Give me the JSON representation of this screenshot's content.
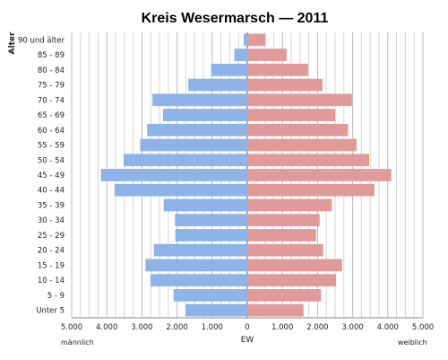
{
  "chart_data": {
    "type": "bar",
    "orientation": "horizontal",
    "title": "Kreis Wesermarsch — 2011",
    "ylabel": "Alter",
    "xlabel": "EW",
    "left_label": "männlich",
    "right_label": "weiblich",
    "xlim": [
      -5000,
      5000
    ],
    "tick_values": [
      -5000,
      -4000,
      -3000,
      -2000,
      -1000,
      0,
      1000,
      2000,
      3000,
      4000,
      5000
    ],
    "tick_labels": [
      "5.000",
      "4.000",
      "3.000",
      "2.000",
      "1.000",
      "0",
      "1.000",
      "2.000",
      "3.000",
      "4.000",
      "5.000"
    ],
    "grid": true,
    "categories": [
      "90 und älter",
      "85 - 89",
      "80 - 84",
      "75 - 79",
      "70 - 74",
      "65 - 69",
      "60 - 64",
      "55 - 59",
      "50 - 54",
      "45 - 49",
      "40 - 44",
      "35 - 39",
      "30 - 34",
      "25 - 29",
      "20 - 24",
      "15 - 19",
      "10 - 14",
      "5 - 9",
      "Unter 5"
    ],
    "series": [
      {
        "name": "männlich",
        "color": "#8db3e8",
        "values": [
          100,
          370,
          1030,
          1680,
          2700,
          2400,
          2850,
          3050,
          3520,
          4170,
          3780,
          2380,
          2060,
          2050,
          2660,
          2900,
          2750,
          2100,
          1760
        ]
      },
      {
        "name": "weiblich",
        "color": "#e09a9a",
        "values": [
          520,
          1120,
          1730,
          2140,
          2980,
          2510,
          2870,
          3110,
          3470,
          4100,
          3620,
          2410,
          2060,
          1960,
          2160,
          2700,
          2530,
          2100,
          1600
        ]
      }
    ]
  }
}
